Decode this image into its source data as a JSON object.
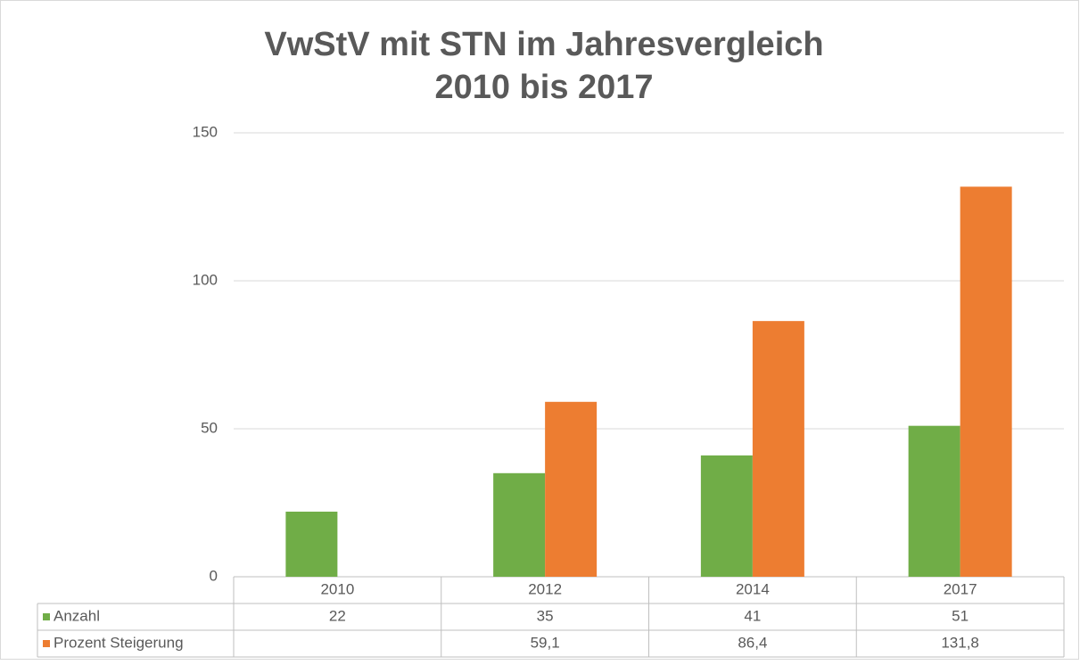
{
  "chart_data": {
    "type": "bar",
    "title": [
      "VwStV mit STN im Jahresvergleich",
      "2010 bis 2017"
    ],
    "categories": [
      "2010",
      "2012",
      "2014",
      "2017"
    ],
    "series": [
      {
        "name": "Anzahl",
        "color": "#70ad47",
        "values": [
          22,
          35,
          41,
          51
        ]
      },
      {
        "name": "Prozent Steigerung",
        "color": "#ed7d31",
        "values": [
          null,
          59.1,
          86.4,
          131.8
        ],
        "value_labels": [
          null,
          "59,1",
          "86,4",
          "131,8"
        ]
      }
    ],
    "ylim": [
      0,
      150
    ],
    "yticks": [
      0,
      50,
      100,
      150
    ],
    "grid": true,
    "legend": "data-table"
  }
}
